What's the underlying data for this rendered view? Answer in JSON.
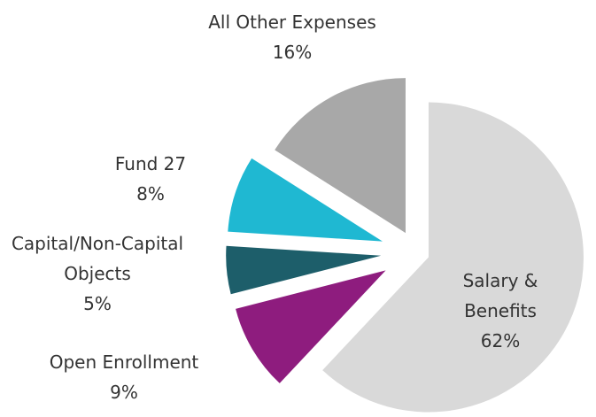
{
  "chart_data": {
    "type": "pie",
    "categories": [
      "Salary & Benefits",
      "Open Enrollment",
      "Capital/Non-Capital Objects",
      "Fund 27",
      "All Other Expenses"
    ],
    "values": [
      62,
      9,
      5,
      8,
      16
    ],
    "value_labels": [
      "62%",
      "9%",
      "5%",
      "8%",
      "16%"
    ],
    "colors": [
      "#d9d9d9",
      "#8e1c7e",
      "#1d5e6a",
      "#1fb8d2",
      "#a8a8a8"
    ]
  }
}
